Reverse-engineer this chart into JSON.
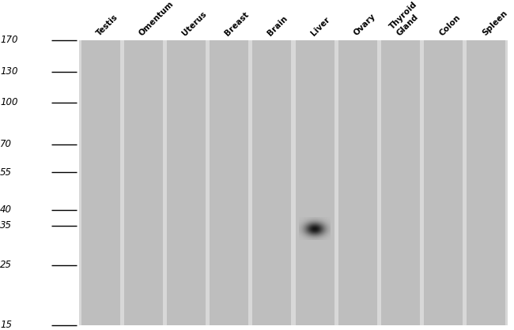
{
  "lanes": [
    "Testis",
    "Omentum",
    "Uterus",
    "Breast",
    "Brain",
    "Liver",
    "Ovary",
    "Thyroid\nGland",
    "Colon",
    "Spleen"
  ],
  "mw_markers": [
    170,
    130,
    100,
    70,
    55,
    40,
    35,
    25,
    15
  ],
  "band_lane_idx": 5,
  "band_mw": 34,
  "background_color": "#ffffff",
  "lane_color": "#bebebe",
  "band_darkness": 0.9,
  "label_fontsize": 7.5,
  "marker_fontsize": 8.5,
  "fig_width": 6.5,
  "fig_height": 4.18,
  "dpi": 100
}
